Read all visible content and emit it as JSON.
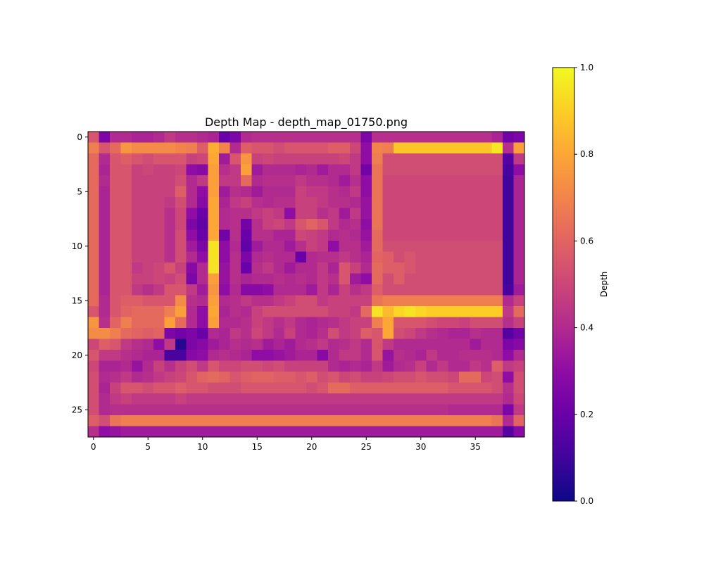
{
  "chart_data": {
    "type": "heatmap",
    "title": "Depth Map - depth_map_01750.png",
    "colormap": "plasma",
    "x_ticks": [
      "0",
      "5",
      "10",
      "15",
      "20",
      "25",
      "30",
      "35"
    ],
    "y_ticks": [
      "0",
      "5",
      "10",
      "15",
      "20",
      "25"
    ],
    "colorbar": {
      "label": "Depth",
      "ticks": [
        "0.0",
        "0.2",
        "0.4",
        "0.6",
        "0.8",
        "1.0"
      ],
      "vmin": 0.0,
      "vmax": 1.0
    },
    "rows": 28,
    "cols": 40,
    "values": [
      [
        0.55,
        0.25,
        0.4,
        0.4,
        0.38,
        0.38,
        0.4,
        0.45,
        0.42,
        0.42,
        0.4,
        0.38,
        0.2,
        0.25,
        0.4,
        0.42,
        0.42,
        0.42,
        0.42,
        0.42,
        0.42,
        0.42,
        0.42,
        0.42,
        0.42,
        0.25,
        0.42,
        0.42,
        0.42,
        0.42,
        0.42,
        0.42,
        0.42,
        0.42,
        0.42,
        0.42,
        0.42,
        0.38,
        0.22,
        0.25
      ],
      [
        0.68,
        0.55,
        0.62,
        0.75,
        0.72,
        0.72,
        0.72,
        0.72,
        0.7,
        0.68,
        0.58,
        0.82,
        0.7,
        0.4,
        0.58,
        0.55,
        0.55,
        0.52,
        0.55,
        0.55,
        0.55,
        0.55,
        0.58,
        0.58,
        0.5,
        0.3,
        0.7,
        0.68,
        0.88,
        0.88,
        0.88,
        0.88,
        0.88,
        0.88,
        0.88,
        0.88,
        0.88,
        0.96,
        0.42,
        0.78
      ],
      [
        0.62,
        0.4,
        0.55,
        0.58,
        0.55,
        0.52,
        0.55,
        0.55,
        0.55,
        0.48,
        0.5,
        0.8,
        0.35,
        0.55,
        0.75,
        0.48,
        0.5,
        0.48,
        0.48,
        0.48,
        0.48,
        0.48,
        0.48,
        0.5,
        0.45,
        0.3,
        0.68,
        0.52,
        0.52,
        0.52,
        0.52,
        0.52,
        0.52,
        0.52,
        0.52,
        0.52,
        0.52,
        0.52,
        0.15,
        0.45
      ],
      [
        0.62,
        0.38,
        0.55,
        0.55,
        0.48,
        0.5,
        0.48,
        0.48,
        0.5,
        0.3,
        0.28,
        0.78,
        0.42,
        0.45,
        0.78,
        0.35,
        0.4,
        0.4,
        0.4,
        0.38,
        0.4,
        0.35,
        0.4,
        0.4,
        0.45,
        0.22,
        0.65,
        0.52,
        0.52,
        0.52,
        0.52,
        0.52,
        0.52,
        0.52,
        0.52,
        0.52,
        0.52,
        0.52,
        0.12,
        0.3
      ],
      [
        0.62,
        0.4,
        0.55,
        0.55,
        0.48,
        0.48,
        0.48,
        0.48,
        0.52,
        0.4,
        0.45,
        0.78,
        0.45,
        0.45,
        0.62,
        0.4,
        0.42,
        0.42,
        0.42,
        0.45,
        0.42,
        0.42,
        0.4,
        0.35,
        0.42,
        0.3,
        0.65,
        0.5,
        0.5,
        0.5,
        0.5,
        0.5,
        0.5,
        0.5,
        0.5,
        0.5,
        0.5,
        0.5,
        0.1,
        0.38
      ],
      [
        0.62,
        0.38,
        0.55,
        0.55,
        0.48,
        0.48,
        0.48,
        0.48,
        0.58,
        0.4,
        0.3,
        0.78,
        0.35,
        0.42,
        0.4,
        0.35,
        0.4,
        0.4,
        0.4,
        0.48,
        0.45,
        0.45,
        0.42,
        0.4,
        0.45,
        0.3,
        0.65,
        0.5,
        0.5,
        0.5,
        0.5,
        0.5,
        0.5,
        0.5,
        0.5,
        0.5,
        0.5,
        0.5,
        0.1,
        0.38
      ],
      [
        0.62,
        0.38,
        0.55,
        0.55,
        0.48,
        0.48,
        0.48,
        0.45,
        0.52,
        0.4,
        0.28,
        0.8,
        0.38,
        0.45,
        0.48,
        0.42,
        0.4,
        0.42,
        0.42,
        0.48,
        0.48,
        0.45,
        0.42,
        0.42,
        0.4,
        0.32,
        0.65,
        0.5,
        0.5,
        0.5,
        0.5,
        0.5,
        0.5,
        0.5,
        0.5,
        0.5,
        0.5,
        0.5,
        0.1,
        0.38
      ],
      [
        0.62,
        0.38,
        0.55,
        0.55,
        0.48,
        0.48,
        0.48,
        0.42,
        0.5,
        0.3,
        0.2,
        0.8,
        0.4,
        0.42,
        0.42,
        0.45,
        0.48,
        0.45,
        0.3,
        0.48,
        0.48,
        0.42,
        0.45,
        0.35,
        0.45,
        0.32,
        0.65,
        0.5,
        0.5,
        0.5,
        0.5,
        0.5,
        0.5,
        0.5,
        0.5,
        0.5,
        0.5,
        0.5,
        0.1,
        0.38
      ],
      [
        0.62,
        0.38,
        0.55,
        0.55,
        0.48,
        0.48,
        0.48,
        0.42,
        0.5,
        0.25,
        0.18,
        0.8,
        0.4,
        0.42,
        0.22,
        0.42,
        0.48,
        0.5,
        0.45,
        0.55,
        0.6,
        0.55,
        0.45,
        0.4,
        0.42,
        0.3,
        0.65,
        0.5,
        0.5,
        0.5,
        0.5,
        0.5,
        0.5,
        0.5,
        0.5,
        0.5,
        0.5,
        0.5,
        0.1,
        0.38
      ],
      [
        0.62,
        0.38,
        0.55,
        0.55,
        0.48,
        0.48,
        0.48,
        0.42,
        0.52,
        0.3,
        0.2,
        0.8,
        0.22,
        0.42,
        0.2,
        0.42,
        0.42,
        0.38,
        0.38,
        0.5,
        0.48,
        0.45,
        0.4,
        0.42,
        0.4,
        0.32,
        0.62,
        0.5,
        0.5,
        0.5,
        0.5,
        0.5,
        0.5,
        0.5,
        0.5,
        0.5,
        0.5,
        0.5,
        0.1,
        0.38
      ],
      [
        0.62,
        0.38,
        0.55,
        0.55,
        0.48,
        0.48,
        0.48,
        0.42,
        0.52,
        0.35,
        0.25,
        0.95,
        0.3,
        0.4,
        0.18,
        0.35,
        0.4,
        0.4,
        0.35,
        0.42,
        0.48,
        0.45,
        0.3,
        0.42,
        0.42,
        0.35,
        0.62,
        0.52,
        0.52,
        0.52,
        0.52,
        0.52,
        0.52,
        0.52,
        0.52,
        0.52,
        0.52,
        0.52,
        0.1,
        0.38
      ],
      [
        0.62,
        0.38,
        0.55,
        0.55,
        0.48,
        0.48,
        0.48,
        0.42,
        0.52,
        0.4,
        0.3,
        0.95,
        0.3,
        0.42,
        0.25,
        0.4,
        0.42,
        0.4,
        0.4,
        0.2,
        0.4,
        0.42,
        0.42,
        0.45,
        0.42,
        0.38,
        0.6,
        0.58,
        0.52,
        0.55,
        0.52,
        0.52,
        0.52,
        0.52,
        0.52,
        0.52,
        0.52,
        0.52,
        0.1,
        0.38
      ],
      [
        0.62,
        0.38,
        0.55,
        0.55,
        0.45,
        0.48,
        0.5,
        0.55,
        0.48,
        0.28,
        0.4,
        0.95,
        0.32,
        0.42,
        0.2,
        0.42,
        0.45,
        0.4,
        0.35,
        0.4,
        0.4,
        0.45,
        0.38,
        0.55,
        0.48,
        0.4,
        0.62,
        0.58,
        0.58,
        0.55,
        0.52,
        0.52,
        0.52,
        0.52,
        0.52,
        0.52,
        0.52,
        0.52,
        0.1,
        0.38
      ],
      [
        0.62,
        0.38,
        0.55,
        0.55,
        0.48,
        0.48,
        0.5,
        0.48,
        0.52,
        0.25,
        0.4,
        0.78,
        0.32,
        0.42,
        0.38,
        0.4,
        0.4,
        0.42,
        0.4,
        0.42,
        0.4,
        0.45,
        0.42,
        0.55,
        0.35,
        0.3,
        0.62,
        0.52,
        0.58,
        0.52,
        0.52,
        0.52,
        0.52,
        0.52,
        0.52,
        0.52,
        0.52,
        0.52,
        0.1,
        0.38
      ],
      [
        0.62,
        0.38,
        0.55,
        0.55,
        0.45,
        0.42,
        0.45,
        0.55,
        0.55,
        0.45,
        0.35,
        0.75,
        0.3,
        0.4,
        0.28,
        0.28,
        0.3,
        0.4,
        0.4,
        0.4,
        0.35,
        0.45,
        0.38,
        0.48,
        0.42,
        0.45,
        0.58,
        0.52,
        0.52,
        0.52,
        0.52,
        0.52,
        0.52,
        0.52,
        0.52,
        0.52,
        0.52,
        0.52,
        0.12,
        0.35
      ],
      [
        0.62,
        0.4,
        0.55,
        0.58,
        0.58,
        0.55,
        0.55,
        0.55,
        0.72,
        0.42,
        0.4,
        0.78,
        0.4,
        0.42,
        0.45,
        0.42,
        0.42,
        0.45,
        0.48,
        0.52,
        0.52,
        0.45,
        0.48,
        0.48,
        0.48,
        0.48,
        0.65,
        0.68,
        0.68,
        0.68,
        0.68,
        0.68,
        0.68,
        0.68,
        0.68,
        0.68,
        0.68,
        0.68,
        0.4,
        0.48
      ],
      [
        0.55,
        0.4,
        0.55,
        0.6,
        0.62,
        0.62,
        0.62,
        0.68,
        0.78,
        0.4,
        0.3,
        0.8,
        0.38,
        0.42,
        0.4,
        0.48,
        0.52,
        0.52,
        0.52,
        0.52,
        0.52,
        0.52,
        0.48,
        0.48,
        0.45,
        0.62,
        0.95,
        0.85,
        0.92,
        0.95,
        0.92,
        0.9,
        0.9,
        0.9,
        0.9,
        0.9,
        0.9,
        0.9,
        0.45,
        0.62
      ],
      [
        0.75,
        0.42,
        0.6,
        0.68,
        0.62,
        0.62,
        0.62,
        0.78,
        0.62,
        0.4,
        0.3,
        0.78,
        0.4,
        0.4,
        0.42,
        0.48,
        0.45,
        0.42,
        0.45,
        0.4,
        0.38,
        0.4,
        0.42,
        0.45,
        0.48,
        0.48,
        0.68,
        0.8,
        0.55,
        0.55,
        0.55,
        0.52,
        0.5,
        0.5,
        0.48,
        0.52,
        0.52,
        0.52,
        0.42,
        0.48
      ],
      [
        0.72,
        0.72,
        0.68,
        0.62,
        0.6,
        0.58,
        0.6,
        0.25,
        0.22,
        0.25,
        0.2,
        0.4,
        0.38,
        0.45,
        0.42,
        0.5,
        0.45,
        0.4,
        0.48,
        0.4,
        0.38,
        0.42,
        0.52,
        0.45,
        0.48,
        0.58,
        0.55,
        0.8,
        0.52,
        0.5,
        0.45,
        0.42,
        0.4,
        0.38,
        0.38,
        0.42,
        0.4,
        0.4,
        0.15,
        0.22
      ],
      [
        0.5,
        0.58,
        0.55,
        0.45,
        0.42,
        0.4,
        0.3,
        0.45,
        0.05,
        0.25,
        0.28,
        0.35,
        0.38,
        0.42,
        0.4,
        0.42,
        0.35,
        0.38,
        0.35,
        0.4,
        0.42,
        0.45,
        0.4,
        0.42,
        0.45,
        0.4,
        0.55,
        0.45,
        0.4,
        0.4,
        0.4,
        0.4,
        0.4,
        0.4,
        0.4,
        0.35,
        0.4,
        0.4,
        0.25,
        0.28
      ],
      [
        0.55,
        0.45,
        0.45,
        0.42,
        0.4,
        0.38,
        0.38,
        0.12,
        0.12,
        0.28,
        0.3,
        0.4,
        0.42,
        0.4,
        0.38,
        0.3,
        0.3,
        0.32,
        0.35,
        0.38,
        0.38,
        0.28,
        0.4,
        0.45,
        0.45,
        0.4,
        0.55,
        0.32,
        0.42,
        0.4,
        0.38,
        0.45,
        0.4,
        0.4,
        0.42,
        0.42,
        0.42,
        0.4,
        0.3,
        0.4
      ],
      [
        0.5,
        0.38,
        0.38,
        0.4,
        0.32,
        0.4,
        0.48,
        0.42,
        0.48,
        0.52,
        0.45,
        0.55,
        0.5,
        0.5,
        0.52,
        0.52,
        0.5,
        0.52,
        0.48,
        0.48,
        0.48,
        0.48,
        0.4,
        0.38,
        0.4,
        0.38,
        0.45,
        0.35,
        0.4,
        0.42,
        0.48,
        0.4,
        0.45,
        0.4,
        0.4,
        0.45,
        0.42,
        0.58,
        0.45,
        0.48
      ],
      [
        0.52,
        0.4,
        0.42,
        0.45,
        0.4,
        0.42,
        0.45,
        0.48,
        0.5,
        0.55,
        0.6,
        0.62,
        0.6,
        0.55,
        0.58,
        0.6,
        0.6,
        0.58,
        0.58,
        0.55,
        0.58,
        0.52,
        0.55,
        0.5,
        0.52,
        0.48,
        0.48,
        0.5,
        0.52,
        0.52,
        0.55,
        0.52,
        0.52,
        0.5,
        0.62,
        0.62,
        0.5,
        0.52,
        0.3,
        0.52
      ],
      [
        0.52,
        0.38,
        0.48,
        0.55,
        0.55,
        0.52,
        0.55,
        0.55,
        0.58,
        0.55,
        0.55,
        0.52,
        0.52,
        0.52,
        0.55,
        0.55,
        0.55,
        0.55,
        0.55,
        0.55,
        0.52,
        0.55,
        0.62,
        0.62,
        0.58,
        0.58,
        0.58,
        0.58,
        0.58,
        0.58,
        0.58,
        0.58,
        0.58,
        0.55,
        0.55,
        0.55,
        0.55,
        0.52,
        0.42,
        0.52
      ],
      [
        0.52,
        0.4,
        0.45,
        0.48,
        0.45,
        0.45,
        0.45,
        0.45,
        0.48,
        0.45,
        0.45,
        0.45,
        0.45,
        0.45,
        0.45,
        0.45,
        0.45,
        0.45,
        0.45,
        0.45,
        0.45,
        0.45,
        0.45,
        0.45,
        0.45,
        0.45,
        0.45,
        0.45,
        0.45,
        0.45,
        0.45,
        0.45,
        0.45,
        0.45,
        0.45,
        0.45,
        0.45,
        0.45,
        0.4,
        0.5
      ],
      [
        0.52,
        0.4,
        0.42,
        0.42,
        0.42,
        0.42,
        0.42,
        0.42,
        0.42,
        0.42,
        0.42,
        0.42,
        0.42,
        0.42,
        0.42,
        0.42,
        0.42,
        0.42,
        0.42,
        0.42,
        0.42,
        0.42,
        0.42,
        0.42,
        0.42,
        0.42,
        0.42,
        0.42,
        0.42,
        0.42,
        0.42,
        0.42,
        0.42,
        0.4,
        0.4,
        0.4,
        0.4,
        0.4,
        0.25,
        0.45
      ],
      [
        0.58,
        0.52,
        0.65,
        0.68,
        0.68,
        0.68,
        0.68,
        0.68,
        0.68,
        0.68,
        0.68,
        0.68,
        0.68,
        0.68,
        0.68,
        0.68,
        0.68,
        0.68,
        0.68,
        0.68,
        0.68,
        0.68,
        0.68,
        0.68,
        0.68,
        0.68,
        0.68,
        0.68,
        0.68,
        0.68,
        0.68,
        0.68,
        0.68,
        0.68,
        0.68,
        0.68,
        0.68,
        0.65,
        0.4,
        0.6
      ],
      [
        0.42,
        0.3,
        0.32,
        0.35,
        0.35,
        0.35,
        0.35,
        0.35,
        0.35,
        0.35,
        0.35,
        0.35,
        0.35,
        0.35,
        0.35,
        0.35,
        0.35,
        0.35,
        0.35,
        0.35,
        0.35,
        0.35,
        0.35,
        0.35,
        0.35,
        0.35,
        0.35,
        0.35,
        0.35,
        0.35,
        0.35,
        0.35,
        0.35,
        0.35,
        0.35,
        0.35,
        0.35,
        0.35,
        0.15,
        0.28
      ]
    ]
  }
}
